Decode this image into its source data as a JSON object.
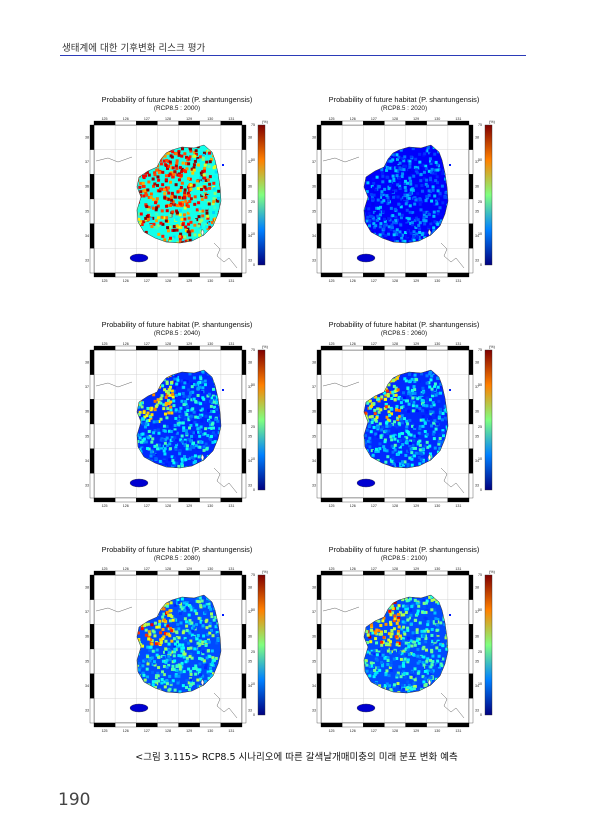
{
  "header": {
    "title": "생태계에 대한 기후변화 리스크 평가"
  },
  "map_common": {
    "longitude_ticks": [
      "125",
      "126",
      "127",
      "128",
      "129",
      "130",
      "131"
    ],
    "latitude_ticks": [
      "38",
      "37",
      "36",
      "35",
      "34",
      "33"
    ],
    "colorbar_ticks": [
      "75",
      "50",
      "25",
      "10",
      "0"
    ],
    "colorbar_unit": "(%)"
  },
  "panels": [
    {
      "title": "Probability of future habitat (P. shantungensis)",
      "subtitle": "(RCP8.5 : 2000)",
      "level": 0.72
    },
    {
      "title": "Probability of future habitat (P. shantungensis)",
      "subtitle": "(RCP8.5 : 2020)",
      "level": 0.22
    },
    {
      "title": "Probability of future habitat (P. shantungensis)",
      "subtitle": "(RCP8.5 : 2040)",
      "level": 0.3
    },
    {
      "title": "Probability of future habitat (P. shantungensis)",
      "subtitle": "(RCP8.5 : 2060)",
      "level": 0.3
    },
    {
      "title": "Probability of future habitat (P. shantungensis)",
      "subtitle": "(RCP8.5 : 2080)",
      "level": 0.36
    },
    {
      "title": "Probability of future habitat (P. shantungensis)",
      "subtitle": "(RCP8.5 : 2100)",
      "level": 0.36
    }
  ],
  "caption": "<그림 3.115> RCP8.5 시나리오에 따른 갈색날개매미충의 미래 분포 변화 예측",
  "page_number": "190"
}
